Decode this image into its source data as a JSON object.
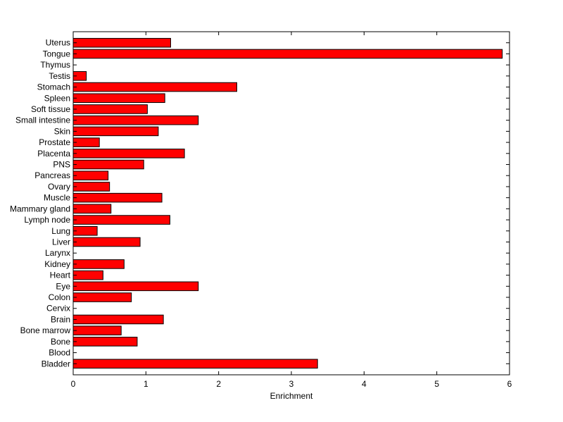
{
  "chart_data": {
    "type": "bar",
    "orientation": "horizontal",
    "title": "",
    "xlabel": "Enrichment",
    "ylabel": "",
    "xlim": [
      0,
      6
    ],
    "xticks": [
      "0",
      "1",
      "2",
      "3",
      "4",
      "5",
      "6"
    ],
    "grid": false,
    "legend": "none",
    "bar_color": "#ff0000",
    "edge_color": "#000000",
    "categories": [
      "Bladder",
      "Blood",
      "Bone",
      "Bone marrow",
      "Brain",
      "Cervix",
      "Colon",
      "Eye",
      "Heart",
      "Kidney",
      "Larynx",
      "Liver",
      "Lung",
      "Lymph node",
      "Mammary gland",
      "Muscle",
      "Ovary",
      "Pancreas",
      "PNS",
      "Placenta",
      "Prostate",
      "Skin",
      "Small intestine",
      "Soft tissue",
      "Spleen",
      "Stomach",
      "Testis",
      "Thymus",
      "Tongue",
      "Uterus"
    ],
    "values": [
      3.36,
      0,
      0.88,
      0.66,
      1.24,
      0,
      0.8,
      1.72,
      0.41,
      0.7,
      0,
      0.92,
      0.33,
      1.33,
      0.52,
      1.22,
      0.5,
      0.48,
      0.97,
      1.53,
      0.36,
      1.17,
      1.72,
      1.02,
      1.26,
      2.25,
      0.18,
      0,
      5.9,
      1.34
    ]
  }
}
